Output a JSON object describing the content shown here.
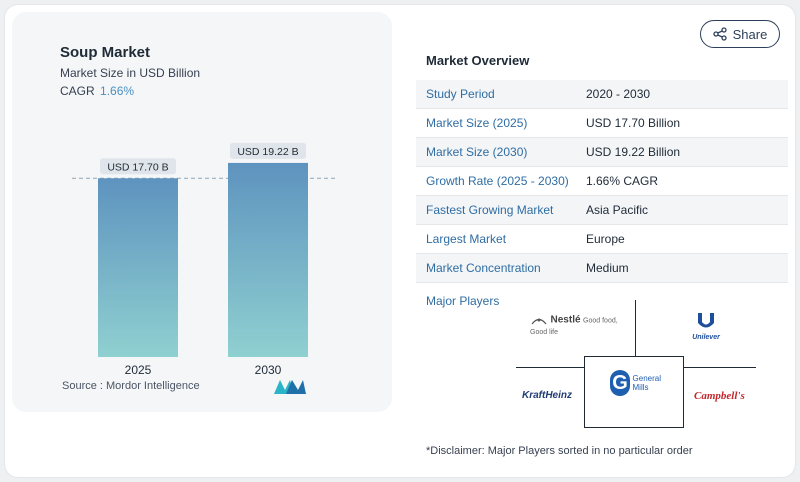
{
  "header": {
    "share_label": "Share"
  },
  "chart_header": {
    "title": "Soup Market",
    "subtitle": "Market Size in USD Billion",
    "cagr_label": "CAGR",
    "cagr_value": "1.66%"
  },
  "chart_data": {
    "type": "bar",
    "categories": [
      "2025",
      "2030"
    ],
    "values": [
      17.7,
      19.22
    ],
    "data_labels": [
      "USD 17.70 B",
      "USD 19.22 B"
    ],
    "title": "Soup Market",
    "subtitle": "Market Size in USD Billion",
    "xlabel": "",
    "ylabel": "",
    "ylim": [
      0,
      20.5
    ],
    "grid": false,
    "reference_line": 17.7,
    "colors": {
      "bar_top": "#5e93bf",
      "bar_bottom": "#8fd0d0",
      "label_bg": "#dfe5ea",
      "ref_line": "#8fa7b8"
    }
  },
  "source": "Source :  Mordor Intelligence",
  "overview": {
    "title": "Market Overview",
    "rows": [
      {
        "label": "Study Period",
        "value": "2020 - 2030"
      },
      {
        "label": "Market Size (2025)",
        "value": "USD 17.70 Billion"
      },
      {
        "label": "Market Size (2030)",
        "value": "USD 19.22 Billion"
      },
      {
        "label": "Growth Rate (2025 - 2030)",
        "value": "1.66% CAGR"
      },
      {
        "label": "Fastest Growing Market",
        "value": "Asia Pacific"
      },
      {
        "label": "Largest Market",
        "value": "Europe"
      },
      {
        "label": "Market Concentration",
        "value": "Medium"
      }
    ]
  },
  "major_players": {
    "title": "Major Players",
    "players": [
      {
        "name": "Nestlé",
        "tagline": "Good food, Good life"
      },
      {
        "name": "Unilever"
      },
      {
        "name": "KraftHeinz"
      },
      {
        "name": "General Mills"
      },
      {
        "name": "Campbell's"
      }
    ]
  },
  "disclaimer": "*Disclaimer: Major Players sorted in no particular order"
}
